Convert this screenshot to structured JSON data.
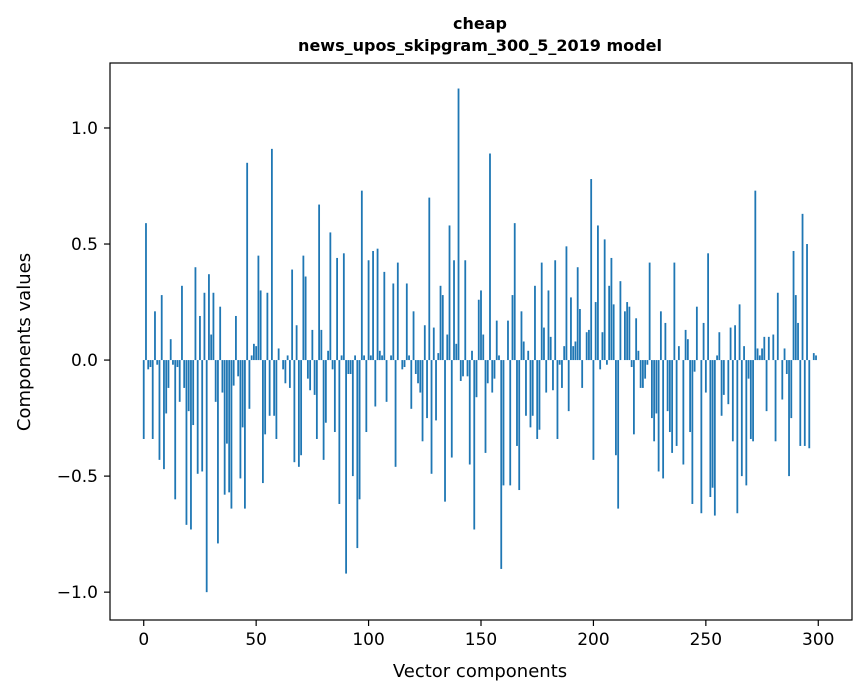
{
  "chart_data": {
    "type": "bar",
    "title": "cheap",
    "subtitle": "news_upos_skipgram_300_5_2019 model",
    "xlabel": "Vector components",
    "ylabel": "Components values",
    "xlim": [
      -15,
      315
    ],
    "ylim": [
      -1.12,
      1.28
    ],
    "xticks": [
      0,
      50,
      100,
      150,
      200,
      250,
      300
    ],
    "xtick_labels": [
      "0",
      "50",
      "100",
      "150",
      "200",
      "250",
      "300"
    ],
    "yticks": [
      -1.0,
      -0.5,
      0.0,
      0.5,
      1.0
    ],
    "ytick_labels": [
      "−1.0",
      "−0.5",
      "0.0",
      "0.5",
      "1.0"
    ],
    "bar_color": "#1f77b4",
    "grid": false,
    "legend": "none",
    "x": [
      0,
      1,
      2,
      3,
      4,
      5,
      6,
      7,
      8,
      9,
      10,
      11,
      12,
      13,
      14,
      15,
      16,
      17,
      18,
      19,
      20,
      21,
      22,
      23,
      24,
      25,
      26,
      27,
      28,
      29,
      30,
      31,
      32,
      33,
      34,
      35,
      36,
      37,
      38,
      39,
      40,
      41,
      42,
      43,
      44,
      45,
      46,
      47,
      48,
      49,
      50,
      51,
      52,
      53,
      54,
      55,
      56,
      57,
      58,
      59,
      60,
      61,
      62,
      63,
      64,
      65,
      66,
      67,
      68,
      69,
      70,
      71,
      72,
      73,
      74,
      75,
      76,
      77,
      78,
      79,
      80,
      81,
      82,
      83,
      84,
      85,
      86,
      87,
      88,
      89,
      90,
      91,
      92,
      93,
      94,
      95,
      96,
      97,
      98,
      99,
      100,
      101,
      102,
      103,
      104,
      105,
      106,
      107,
      108,
      109,
      110,
      111,
      112,
      113,
      114,
      115,
      116,
      117,
      118,
      119,
      120,
      121,
      122,
      123,
      124,
      125,
      126,
      127,
      128,
      129,
      130,
      131,
      132,
      133,
      134,
      135,
      136,
      137,
      138,
      139,
      140,
      141,
      142,
      143,
      144,
      145,
      146,
      147,
      148,
      149,
      150,
      151,
      152,
      153,
      154,
      155,
      156,
      157,
      158,
      159,
      160,
      161,
      162,
      163,
      164,
      165,
      166,
      167,
      168,
      169,
      170,
      171,
      172,
      173,
      174,
      175,
      176,
      177,
      178,
      179,
      180,
      181,
      182,
      183,
      184,
      185,
      186,
      187,
      188,
      189,
      190,
      191,
      192,
      193,
      194,
      195,
      196,
      197,
      198,
      199,
      200,
      201,
      202,
      203,
      204,
      205,
      206,
      207,
      208,
      209,
      210,
      211,
      212,
      213,
      214,
      215,
      216,
      217,
      218,
      219,
      220,
      221,
      222,
      223,
      224,
      225,
      226,
      227,
      228,
      229,
      230,
      231,
      232,
      233,
      234,
      235,
      236,
      237,
      238,
      239,
      240,
      241,
      242,
      243,
      244,
      245,
      246,
      247,
      248,
      249,
      250,
      251,
      252,
      253,
      254,
      255,
      256,
      257,
      258,
      259,
      260,
      261,
      262,
      263,
      264,
      265,
      266,
      267,
      268,
      269,
      270,
      271,
      272,
      273,
      274,
      275,
      276,
      277,
      278,
      279,
      280,
      281,
      282,
      283,
      284,
      285,
      286,
      287,
      288,
      289,
      290,
      291,
      292,
      293,
      294,
      295,
      296,
      297,
      298,
      299
    ],
    "values": [
      -0.34,
      0.59,
      -0.04,
      -0.03,
      -0.34,
      0.21,
      -0.02,
      -0.43,
      0.28,
      -0.47,
      -0.23,
      -0.12,
      0.09,
      -0.02,
      -0.6,
      -0.03,
      -0.18,
      0.32,
      -0.12,
      -0.71,
      -0.22,
      -0.73,
      -0.28,
      0.4,
      -0.49,
      0.19,
      -0.48,
      0.29,
      -1.0,
      0.37,
      0.11,
      0.29,
      -0.18,
      -0.79,
      0.23,
      -0.14,
      -0.58,
      -0.36,
      -0.57,
      -0.64,
      -0.11,
      0.19,
      -0.07,
      -0.51,
      -0.29,
      -0.64,
      0.85,
      -0.21,
      0.02,
      0.07,
      0.06,
      0.45,
      0.3,
      -0.53,
      -0.32,
      0.29,
      -0.24,
      0.91,
      -0.24,
      -0.34,
      0.05,
      0.0,
      -0.04,
      -0.1,
      0.02,
      -0.12,
      0.39,
      -0.44,
      0.15,
      -0.46,
      -0.41,
      0.45,
      0.36,
      -0.08,
      -0.13,
      0.13,
      -0.15,
      -0.34,
      0.67,
      0.13,
      -0.43,
      -0.27,
      0.04,
      0.55,
      -0.04,
      -0.31,
      0.44,
      -0.62,
      0.02,
      0.46,
      -0.92,
      -0.06,
      -0.06,
      -0.5,
      0.02,
      -0.81,
      -0.6,
      0.73,
      0.02,
      -0.31,
      0.43,
      0.02,
      0.47,
      -0.2,
      0.48,
      0.04,
      0.02,
      0.38,
      -0.18,
      0.0,
      0.02,
      0.33,
      -0.46,
      0.42,
      0.0,
      -0.04,
      -0.03,
      0.33,
      0.02,
      -0.21,
      0.21,
      -0.06,
      -0.1,
      -0.14,
      -0.35,
      0.15,
      -0.25,
      0.7,
      -0.49,
      0.14,
      -0.26,
      0.03,
      0.32,
      0.28,
      -0.61,
      0.11,
      0.58,
      -0.42,
      0.43,
      0.07,
      1.17,
      -0.09,
      -0.07,
      0.43,
      -0.07,
      -0.45,
      0.04,
      -0.73,
      -0.16,
      0.26,
      0.3,
      0.11,
      -0.4,
      -0.1,
      0.89,
      -0.14,
      -0.08,
      0.17,
      0.02,
      -0.9,
      -0.54,
      0.0,
      0.17,
      -0.54,
      0.28,
      0.59,
      -0.37,
      -0.56,
      0.21,
      0.08,
      -0.24,
      0.04,
      -0.29,
      -0.24,
      0.32,
      -0.34,
      -0.3,
      0.42,
      0.14,
      -0.14,
      0.3,
      0.1,
      -0.13,
      0.43,
      -0.34,
      -0.02,
      -0.12,
      0.06,
      0.49,
      -0.22,
      0.27,
      0.06,
      0.08,
      0.4,
      0.22,
      -0.12,
      0.0,
      0.12,
      0.13,
      0.78,
      -0.43,
      0.25,
      0.58,
      -0.04,
      0.12,
      0.52,
      -0.02,
      0.32,
      0.44,
      0.24,
      -0.41,
      -0.64,
      0.34,
      0.0,
      0.21,
      0.25,
      0.23,
      -0.03,
      -0.32,
      0.18,
      0.04,
      -0.12,
      -0.12,
      -0.08,
      -0.02,
      0.42,
      -0.25,
      -0.35,
      -0.23,
      -0.48,
      0.21,
      -0.51,
      0.16,
      -0.22,
      -0.31,
      -0.4,
      0.42,
      -0.37,
      0.06,
      0.0,
      -0.45,
      0.13,
      0.09,
      -0.31,
      -0.62,
      -0.05,
      0.23,
      0.0,
      -0.66,
      0.16,
      -0.14,
      0.46,
      -0.59,
      -0.55,
      -0.67,
      0.02,
      0.12,
      -0.24,
      -0.15,
      0.0,
      -0.19,
      0.14,
      -0.35,
      0.15,
      -0.66,
      0.24,
      -0.5,
      0.06,
      -0.54,
      -0.08,
      -0.34,
      -0.35,
      0.73,
      0.05,
      0.02,
      0.05,
      0.1,
      -0.22,
      0.1,
      0.0,
      0.11,
      -0.35,
      0.29,
      0.0,
      -0.17,
      0.05,
      -0.06,
      -0.5,
      -0.25,
      0.47,
      0.28,
      0.16,
      -0.37,
      0.63,
      -0.37,
      0.5,
      -0.38,
      0.0,
      0.03,
      0.02
    ]
  }
}
